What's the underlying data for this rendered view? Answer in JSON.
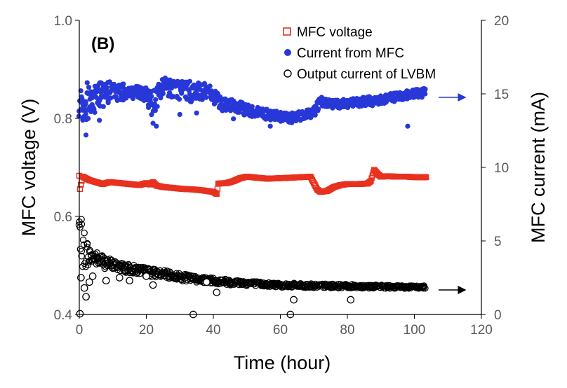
{
  "chart_data": {
    "type": "scatter",
    "panel_label": "(B)",
    "xlabel": "Time (hour)",
    "ylabel": "MFC voltage (V)",
    "y2label": "MFC current  (mA)",
    "xlim": [
      0,
      120
    ],
    "ylim": [
      0.4,
      1.0
    ],
    "y2lim": [
      0,
      20
    ],
    "xticks": [
      "0",
      "20",
      "40",
      "60",
      "80",
      "100",
      "120"
    ],
    "yticks": [
      "0.4",
      "0.6",
      "0.8",
      "1.0"
    ],
    "y2ticks": [
      "0",
      "5",
      "10",
      "15",
      "20"
    ],
    "grid": false,
    "legend_position": "top-right",
    "series": [
      {
        "name": "MFC voltage",
        "axis": "left",
        "marker": "open-square",
        "color": "#e8311f",
        "points": [
          [
            0,
            0.683
          ],
          [
            0.2,
            0.656
          ],
          [
            1,
            0.681
          ],
          [
            3,
            0.674
          ],
          [
            5,
            0.67
          ],
          [
            7,
            0.666
          ],
          [
            9,
            0.67
          ],
          [
            12,
            0.668
          ],
          [
            15,
            0.666
          ],
          [
            18,
            0.664
          ],
          [
            20,
            0.668
          ],
          [
            21,
            0.665
          ],
          [
            22,
            0.67
          ],
          [
            23,
            0.663
          ],
          [
            25,
            0.66
          ],
          [
            28,
            0.658
          ],
          [
            31,
            0.656
          ],
          [
            34,
            0.655
          ],
          [
            37,
            0.653
          ],
          [
            40,
            0.65
          ],
          [
            41,
            0.646
          ],
          [
            41.5,
            0.667
          ],
          [
            44,
            0.668
          ],
          [
            46,
            0.672
          ],
          [
            48,
            0.678
          ],
          [
            50,
            0.681
          ],
          [
            53,
            0.679
          ],
          [
            56,
            0.677
          ],
          [
            60,
            0.678
          ],
          [
            63,
            0.679
          ],
          [
            66,
            0.68
          ],
          [
            69,
            0.681
          ],
          [
            70,
            0.668
          ],
          [
            71,
            0.655
          ],
          [
            72,
            0.65
          ],
          [
            74,
            0.652
          ],
          [
            76,
            0.66
          ],
          [
            78,
            0.664
          ],
          [
            80,
            0.666
          ],
          [
            83,
            0.666
          ],
          [
            86,
            0.667
          ],
          [
            87,
            0.672
          ],
          [
            88,
            0.695
          ],
          [
            89,
            0.687
          ],
          [
            90,
            0.681
          ],
          [
            92,
            0.682
          ],
          [
            95,
            0.681
          ],
          [
            98,
            0.681
          ],
          [
            100,
            0.68
          ],
          [
            103.5,
            0.68
          ]
        ]
      },
      {
        "name": "Current from MFC",
        "axis": "right",
        "marker": "filled-circle",
        "color": "#2838d8",
        "band": [
          [
            0,
            15.6,
            13.4
          ],
          [
            2,
            15.8,
            12.8
          ],
          [
            5,
            15.9,
            13.8
          ],
          [
            10,
            15.8,
            14.5
          ],
          [
            15,
            15.6,
            14.6
          ],
          [
            20,
            15.4,
            14.3
          ],
          [
            22,
            15.3,
            13.4
          ],
          [
            24,
            16.0,
            14.0
          ],
          [
            26,
            16.2,
            14.7
          ],
          [
            30,
            16.0,
            14.6
          ],
          [
            34,
            15.8,
            14.4
          ],
          [
            38,
            15.7,
            14.6
          ],
          [
            40,
            15.3,
            14.3
          ],
          [
            43,
            14.7,
            13.8
          ],
          [
            46,
            14.6,
            13.7
          ],
          [
            50,
            14.3,
            13.5
          ],
          [
            55,
            14.0,
            13.3
          ],
          [
            60,
            13.8,
            13.1
          ],
          [
            63,
            13.7,
            13.0
          ],
          [
            66,
            13.8,
            13.2
          ],
          [
            70,
            14.1,
            13.4
          ],
          [
            72,
            14.9,
            14.2
          ],
          [
            74,
            14.6,
            14.0
          ],
          [
            78,
            14.6,
            14.0
          ],
          [
            82,
            14.7,
            14.1
          ],
          [
            86,
            14.8,
            14.1
          ],
          [
            90,
            14.9,
            14.3
          ],
          [
            95,
            15.1,
            14.5
          ],
          [
            100,
            15.3,
            14.7
          ],
          [
            103.5,
            15.4,
            14.8
          ]
        ],
        "outliers": [
          [
            1,
            13.3
          ],
          [
            2,
            12.2
          ],
          [
            6,
            13.2
          ],
          [
            22,
            13.0
          ],
          [
            23,
            12.8
          ],
          [
            30,
            13.6
          ],
          [
            35,
            13.7
          ],
          [
            46,
            13.3
          ],
          [
            57,
            12.8
          ],
          [
            66,
            13.2
          ],
          [
            98,
            12.8
          ]
        ]
      },
      {
        "name": "Output current of LVBM",
        "axis": "right",
        "marker": "open-circle",
        "color": "#000000",
        "band": [
          [
            0,
            7.2,
            4.2
          ],
          [
            0.5,
            6.8,
            3.6
          ],
          [
            1,
            6.0,
            2.8
          ],
          [
            3,
            4.5,
            3.4
          ],
          [
            6,
            4.2,
            3.2
          ],
          [
            10,
            3.7,
            3.0
          ],
          [
            15,
            3.4,
            2.8
          ],
          [
            20,
            3.2,
            2.6
          ],
          [
            25,
            3.0,
            2.5
          ],
          [
            30,
            2.8,
            2.3
          ],
          [
            35,
            2.6,
            2.2
          ],
          [
            40,
            2.5,
            2.1
          ],
          [
            45,
            2.4,
            2.0
          ],
          [
            50,
            2.3,
            1.95
          ],
          [
            55,
            2.2,
            1.9
          ],
          [
            60,
            2.15,
            1.85
          ],
          [
            70,
            2.1,
            1.8
          ],
          [
            80,
            2.05,
            1.8
          ],
          [
            90,
            2.0,
            1.78
          ],
          [
            100,
            1.95,
            1.75
          ],
          [
            103.5,
            1.95,
            1.75
          ]
        ],
        "outliers": [
          [
            0.2,
            0.05
          ],
          [
            0.5,
            2.5
          ],
          [
            1.5,
            1.8
          ],
          [
            2,
            1.2
          ],
          [
            3,
            2.2
          ],
          [
            4,
            2.6
          ],
          [
            8,
            2.3
          ],
          [
            12,
            2.5
          ],
          [
            15,
            2.3
          ],
          [
            20,
            2.6
          ],
          [
            22,
            2.0
          ],
          [
            34,
            0.0
          ],
          [
            38,
            2.2
          ],
          [
            41,
            1.5
          ],
          [
            63,
            0.0
          ],
          [
            64,
            1.0
          ],
          [
            81,
            1.0
          ]
        ]
      }
    ],
    "annotations": [
      "right-arrow near Current from MFC at x=105",
      "right-arrow near Output current of LVBM at x=105"
    ]
  }
}
